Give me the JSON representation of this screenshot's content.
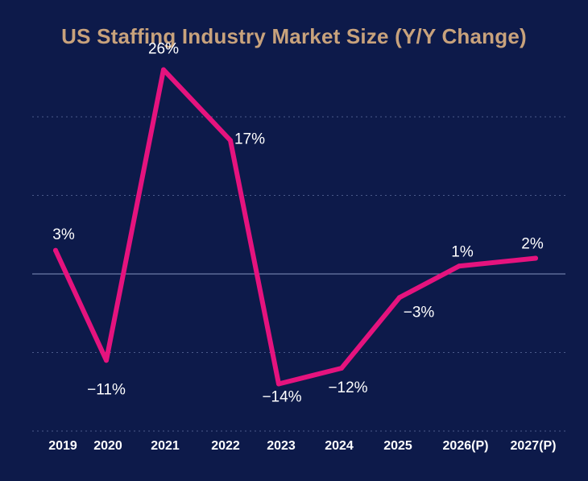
{
  "chart_data": {
    "type": "line",
    "title": "US Staffing Industry Market Size (Y/Y Change)",
    "categories": [
      "2019",
      "2020",
      "2021",
      "2022",
      "2023",
      "2024",
      "2025",
      "2026(P)",
      "2027(P)"
    ],
    "series": [
      {
        "values": [
          3,
          -11,
          26,
          17,
          -14,
          -12,
          -3,
          1,
          2
        ],
        "labels": [
          "3%",
          "−11%",
          "26%",
          "17%",
          "−14%",
          "−12%",
          "−3%",
          "1%",
          "2%"
        ]
      }
    ],
    "xlabel": "",
    "ylabel": "",
    "ylim": [
      -20,
      20
    ],
    "grid": true,
    "legend": "none"
  },
  "colors": {
    "background": "#0d1a4a",
    "title": "#c8a27c",
    "line": "#e5137e",
    "gridline": "#4a5a8a",
    "zero_line": "#6b7aa8",
    "text": "#ffffff"
  }
}
